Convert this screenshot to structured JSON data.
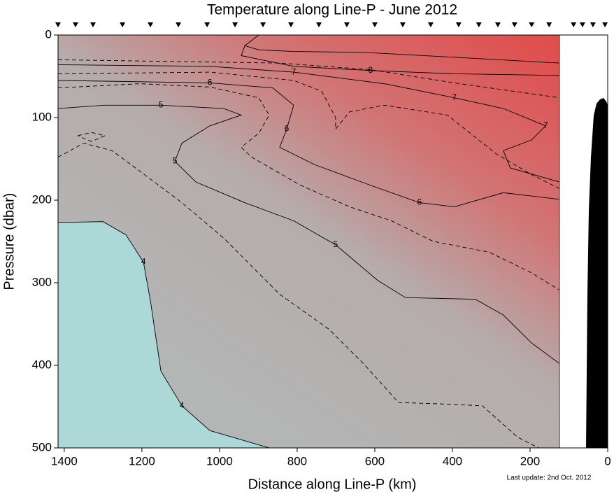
{
  "chart_data": {
    "type": "contour",
    "title": "Temperature along Line-P - June 2012",
    "x_label": "Distance along Line-P (km)",
    "y_label": "Pressure (dbar)",
    "annotation": "Last update: 2nd Oct. 2012",
    "xlim": [
      1416,
      0
    ],
    "ylim": [
      0,
      500
    ],
    "xticks": [
      1400,
      1200,
      1000,
      800,
      600,
      400,
      200,
      0
    ],
    "yticks": [
      0,
      100,
      200,
      300,
      400,
      500
    ],
    "stations": [
      1416,
      1371,
      1326,
      1250,
      1178,
      1106,
      1032,
      960,
      888,
      816,
      744,
      672,
      600,
      528,
      456,
      384,
      332,
      283,
      240,
      196,
      151,
      88,
      65,
      38,
      7
    ],
    "contours": [
      {
        "level": 4,
        "x": [
          1416,
          1300,
          1241,
          1196,
          1178,
          1151,
          1097,
          1025,
          872
        ],
        "values": [
          227,
          226,
          242,
          275,
          322,
          407,
          449,
          479,
          500
        ]
      },
      {
        "line_style": "dashed",
        "x": [
          1416,
          1350,
          1277,
          1205,
          1097,
          989,
          845,
          719,
          629,
          539,
          413,
          323,
          232,
          178
        ],
        "values": [
          148,
          131,
          140,
          165,
          203,
          246,
          314,
          356,
          398,
          445,
          447,
          449,
          487,
          500
        ]
      },
      {
        "line_style": "dashed",
        "x": [
          1365,
          1330,
          1295,
          1330,
          1365
        ],
        "values": [
          122,
          118,
          122,
          129,
          122
        ]
      },
      {
        "level": 5,
        "x": [
          1416,
          1295,
          1151,
          989,
          944,
          1025,
          1097,
          1115,
          1061,
          935,
          809,
          701,
          593,
          521,
          341,
          269,
          196,
          124
        ],
        "values": [
          89,
          85,
          85,
          89,
          97,
          110,
          131,
          153,
          178,
          203,
          225,
          254,
          297,
          318,
          320,
          339,
          373,
          398
        ]
      },
      {
        "line_style": "dashed",
        "x": [
          1416,
          1205,
          1025,
          899,
          872,
          899,
          944,
          917,
          791,
          665,
          557,
          449,
          305,
          196,
          124
        ],
        "values": [
          64,
          59,
          63,
          76,
          97,
          119,
          136,
          148,
          182,
          208,
          225,
          250,
          263,
          288,
          309
        ]
      },
      {
        "level": 6,
        "x": [
          1416,
          1025,
          863,
          809,
          827,
          845,
          755,
          611,
          485,
          395,
          269,
          124
        ],
        "values": [
          55,
          58,
          64,
          85,
          114,
          136,
          157,
          182,
          203,
          208,
          191,
          199
        ]
      },
      {
        "line_style": "dashed",
        "x": [
          1416,
          1025,
          809,
          737,
          701,
          701,
          665,
          575,
          413,
          287,
          196,
          124
        ],
        "values": [
          47,
          45,
          55,
          68,
          100,
          114,
          93,
          85,
          97,
          144,
          169,
          186
        ]
      },
      {
        "level": 7,
        "x": [
          1416,
          1025,
          809,
          575,
          395,
          269,
          160,
          196,
          269,
          251,
          124
        ],
        "values": [
          36,
          38,
          45,
          59,
          76,
          89,
          110,
          127,
          140,
          161,
          178
        ]
      },
      {
        "line_style": "dashed",
        "x": [
          1416,
          845,
          611,
          395,
          124
        ],
        "values": [
          30,
          34,
          42,
          58,
          76
        ]
      },
      {
        "level": 8,
        "x": [
          935,
          944,
          809,
          611,
          395,
          124
        ],
        "values": [
          13,
          25,
          38,
          43,
          47,
          49
        ]
      },
      {
        "x": [
          899,
          935,
          899,
          809,
          629,
          395,
          124
        ],
        "values": [
          0,
          13,
          18,
          20,
          21,
          27,
          34
        ]
      }
    ]
  }
}
